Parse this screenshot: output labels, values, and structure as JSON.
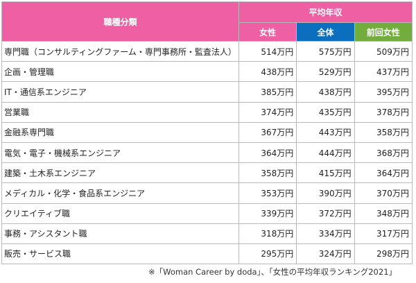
{
  "table": {
    "header": {
      "category": "職種分類",
      "average_income": "平均年収",
      "female": "女性",
      "total": "全体",
      "prev_female": "前回女性"
    },
    "rows": [
      {
        "category": "専門職（コンサルティングファーム・専門事務所・監査法人）",
        "female": "514万円",
        "total": "575万円",
        "prev_female": "509万円"
      },
      {
        "category": "企画・管理職",
        "female": "438万円",
        "total": "529万円",
        "prev_female": "437万円"
      },
      {
        "category": "IT・通信系エンジニア",
        "female": "385万円",
        "total": "438万円",
        "prev_female": "395万円"
      },
      {
        "category": "営業職",
        "female": "374万円",
        "total": "435万円",
        "prev_female": "378万円"
      },
      {
        "category": "金融系専門職",
        "female": "367万円",
        "total": "443万円",
        "prev_female": "358万円"
      },
      {
        "category": "電気・電子・機械系エンジニア",
        "female": "364万円",
        "total": "444万円",
        "prev_female": "368万円"
      },
      {
        "category": "建築・土木系エンジニア",
        "female": "358万円",
        "total": "415万円",
        "prev_female": "364万円"
      },
      {
        "category": "メディカル・化学・食品系エンジニア",
        "female": "353万円",
        "total": "390万円",
        "prev_female": "370万円"
      },
      {
        "category": "クリエイティブ職",
        "female": "339万円",
        "total": "372万円",
        "prev_female": "348万円"
      },
      {
        "category": "事務・アシスタント職",
        "female": "318万円",
        "total": "334万円",
        "prev_female": "317万円"
      },
      {
        "category": "販売・サービス職",
        "female": "295万円",
        "total": "324万円",
        "prev_female": "298万円"
      }
    ]
  },
  "source_note": "※「Woman Career by doda」、「女性の平均年収ランキング2021」",
  "colors": {
    "header_pink": "#ee5fa4",
    "header_blue": "#0b6fbe",
    "header_green": "#72ad3e",
    "border": "#b9b9b9"
  }
}
